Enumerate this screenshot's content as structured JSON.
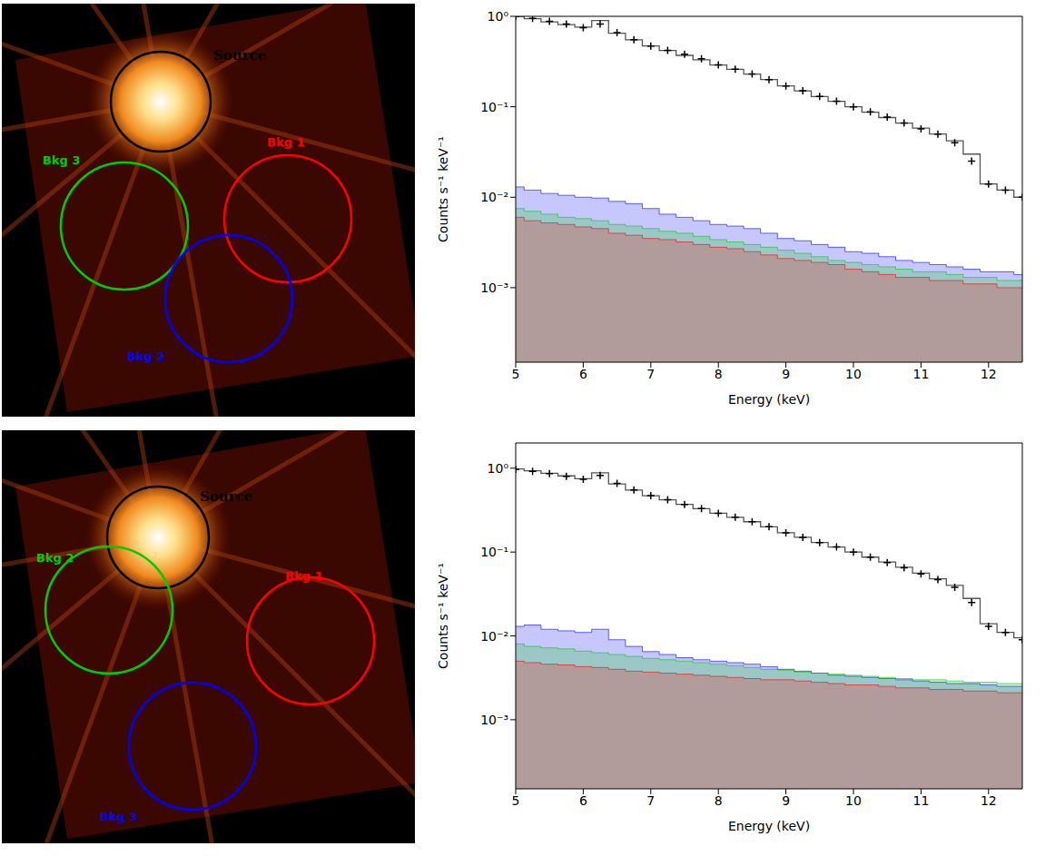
{
  "images": [
    {
      "regions": [
        {
          "label": "Source",
          "color": "#000000"
        },
        {
          "label": "Bkg 1",
          "color": "#ff0000"
        },
        {
          "label": "Bkg 3",
          "color": "#00cc00"
        },
        {
          "label": "Bkg 2",
          "color": "#0000ff"
        }
      ]
    },
    {
      "regions": [
        {
          "label": "Source",
          "color": "#000000"
        },
        {
          "label": "Bkg 2",
          "color": "#00cc00"
        },
        {
          "label": "Bkg 1",
          "color": "#ff0000"
        },
        {
          "label": "Bkg 3",
          "color": "#0000ff"
        }
      ]
    }
  ],
  "chart_data": [
    {
      "type": "line",
      "x_label": "Energy (keV)",
      "y_label": "Counts s⁻¹ keV⁻¹",
      "log": "y",
      "x": [
        5,
        5.25,
        5.5,
        5.75,
        6,
        6.25,
        6.5,
        6.75,
        7,
        7.25,
        7.5,
        7.75,
        8,
        8.25,
        8.5,
        8.75,
        9,
        9.25,
        9.5,
        9.75,
        10,
        10.25,
        10.5,
        10.75,
        11,
        11.25,
        11.5,
        11.75,
        12,
        12.25,
        12.5
      ],
      "xlim": [
        5,
        12.5
      ],
      "xticks": [
        5,
        6,
        7,
        8,
        9,
        10,
        11,
        12
      ],
      "ylim": [
        0.00015,
        1
      ],
      "yticks": [
        {
          "value": 0.001,
          "label": "10⁻³"
        },
        {
          "value": 0.01,
          "label": "10⁻²"
        },
        {
          "value": 0.1,
          "label": "10⁻¹"
        },
        {
          "value": 1,
          "label": "10⁰"
        }
      ],
      "series": [
        {
          "name": "Bkg 2",
          "color": "#0000ff",
          "type": "area",
          "values": [
            0.013,
            0.012,
            0.011,
            0.0105,
            0.01,
            0.0098,
            0.009,
            0.0085,
            0.0075,
            0.0065,
            0.006,
            0.0055,
            0.005,
            0.0048,
            0.0045,
            0.004,
            0.0035,
            0.0033,
            0.003,
            0.0028,
            0.0025,
            0.0024,
            0.0022,
            0.002,
            0.0019,
            0.0018,
            0.0017,
            0.0016,
            0.0015,
            0.0015,
            0.0014
          ]
        },
        {
          "name": "Bkg 3",
          "color": "#00cc00",
          "type": "area",
          "values": [
            0.0075,
            0.007,
            0.0065,
            0.006,
            0.0058,
            0.0055,
            0.005,
            0.0048,
            0.0045,
            0.0042,
            0.004,
            0.0037,
            0.0034,
            0.0032,
            0.003,
            0.0028,
            0.0026,
            0.0024,
            0.0022,
            0.002,
            0.0019,
            0.0018,
            0.0017,
            0.0016,
            0.0015,
            0.0015,
            0.0014,
            0.0013,
            0.0013,
            0.0012,
            0.0012
          ]
        },
        {
          "name": "Bkg 1",
          "color": "#ff0000",
          "type": "area",
          "values": [
            0.006,
            0.0055,
            0.0052,
            0.005,
            0.0047,
            0.0045,
            0.004,
            0.0038,
            0.0035,
            0.0034,
            0.0032,
            0.003,
            0.0028,
            0.0027,
            0.0025,
            0.0023,
            0.0021,
            0.002,
            0.0019,
            0.0018,
            0.0016,
            0.0015,
            0.0014,
            0.0013,
            0.0013,
            0.0012,
            0.0012,
            0.0011,
            0.0011,
            0.001,
            0.001
          ]
        },
        {
          "color": "#555555",
          "type": "line",
          "line_style": "step",
          "values": [
            1.0,
            0.94,
            0.87,
            0.81,
            0.76,
            0.9,
            0.65,
            0.55,
            0.47,
            0.42,
            0.37,
            0.33,
            0.29,
            0.26,
            0.23,
            0.2,
            0.17,
            0.15,
            0.13,
            0.115,
            0.1,
            0.087,
            0.076,
            0.066,
            0.058,
            0.05,
            0.042,
            0.03,
            0.014,
            0.012,
            0.01
          ]
        },
        {
          "name": "Source",
          "color": "#000000",
          "type": "scatter",
          "marker": "plus",
          "values": [
            1.0,
            0.95,
            0.88,
            0.82,
            0.75,
            0.82,
            0.66,
            0.55,
            0.47,
            0.42,
            0.38,
            0.34,
            0.29,
            0.26,
            0.23,
            0.2,
            0.17,
            0.15,
            0.13,
            0.115,
            0.1,
            0.088,
            0.077,
            0.066,
            0.057,
            0.05,
            0.04,
            0.025,
            0.014,
            0.012,
            0.01
          ]
        }
      ]
    },
    {
      "type": "line",
      "x_label": "Energy (keV)",
      "y_label": "Counts s⁻¹ keV⁻¹",
      "log": "y",
      "x": [
        5,
        5.25,
        5.5,
        5.75,
        6,
        6.25,
        6.5,
        6.75,
        7,
        7.25,
        7.5,
        7.75,
        8,
        8.25,
        8.5,
        8.75,
        9,
        9.25,
        9.5,
        9.75,
        10,
        10.25,
        10.5,
        10.75,
        11,
        11.25,
        11.5,
        11.75,
        12,
        12.25,
        12.5
      ],
      "xlim": [
        5,
        12.5
      ],
      "xticks": [
        5,
        6,
        7,
        8,
        9,
        10,
        11,
        12
      ],
      "ylim": [
        0.00015,
        2
      ],
      "yticks": [
        {
          "value": 0.001,
          "label": "10⁻³"
        },
        {
          "value": 0.01,
          "label": "10⁻²"
        },
        {
          "value": 0.1,
          "label": "10⁻¹"
        },
        {
          "value": 1,
          "label": "10⁰"
        }
      ],
      "series": [
        {
          "name": "Bkg 3",
          "color": "#0000ff",
          "type": "area",
          "values": [
            0.013,
            0.0135,
            0.012,
            0.0115,
            0.011,
            0.012,
            0.009,
            0.0075,
            0.0065,
            0.006,
            0.0055,
            0.0052,
            0.005,
            0.0048,
            0.0046,
            0.0043,
            0.004,
            0.0038,
            0.0036,
            0.0034,
            0.0033,
            0.0032,
            0.0031,
            0.003,
            0.0029,
            0.0028,
            0.0027,
            0.0027,
            0.0026,
            0.0025,
            0.0025
          ]
        },
        {
          "name": "Bkg 2",
          "color": "#00cc00",
          "type": "area",
          "values": [
            0.008,
            0.0075,
            0.0072,
            0.007,
            0.0066,
            0.0063,
            0.006,
            0.0057,
            0.0054,
            0.0052,
            0.005,
            0.0048,
            0.0046,
            0.0044,
            0.0042,
            0.004,
            0.0039,
            0.0037,
            0.0036,
            0.0035,
            0.0034,
            0.0033,
            0.0032,
            0.0031,
            0.003,
            0.003,
            0.0029,
            0.0028,
            0.0028,
            0.0027,
            0.0027
          ]
        },
        {
          "name": "Bkg 1",
          "color": "#ff0000",
          "type": "area",
          "values": [
            0.005,
            0.0048,
            0.0046,
            0.0045,
            0.0043,
            0.0042,
            0.004,
            0.0038,
            0.0037,
            0.0036,
            0.0035,
            0.0034,
            0.0033,
            0.0032,
            0.0031,
            0.003,
            0.003,
            0.0029,
            0.0028,
            0.0027,
            0.0026,
            0.0026,
            0.0025,
            0.0024,
            0.0024,
            0.0023,
            0.0023,
            0.0022,
            0.0022,
            0.0021,
            0.0021
          ]
        },
        {
          "color": "#555555",
          "type": "line",
          "line_style": "step",
          "values": [
            0.98,
            0.93,
            0.87,
            0.81,
            0.75,
            0.88,
            0.65,
            0.55,
            0.47,
            0.42,
            0.37,
            0.33,
            0.29,
            0.26,
            0.23,
            0.2,
            0.17,
            0.15,
            0.13,
            0.115,
            0.1,
            0.087,
            0.076,
            0.066,
            0.056,
            0.048,
            0.04,
            0.028,
            0.014,
            0.011,
            0.0095
          ]
        },
        {
          "name": "Source",
          "color": "#000000",
          "type": "scatter",
          "marker": "plus",
          "values": [
            0.97,
            0.92,
            0.86,
            0.8,
            0.74,
            0.82,
            0.66,
            0.55,
            0.47,
            0.42,
            0.37,
            0.33,
            0.29,
            0.26,
            0.23,
            0.2,
            0.17,
            0.15,
            0.13,
            0.115,
            0.1,
            0.087,
            0.075,
            0.065,
            0.055,
            0.047,
            0.038,
            0.025,
            0.013,
            0.011,
            0.009
          ]
        }
      ]
    }
  ]
}
